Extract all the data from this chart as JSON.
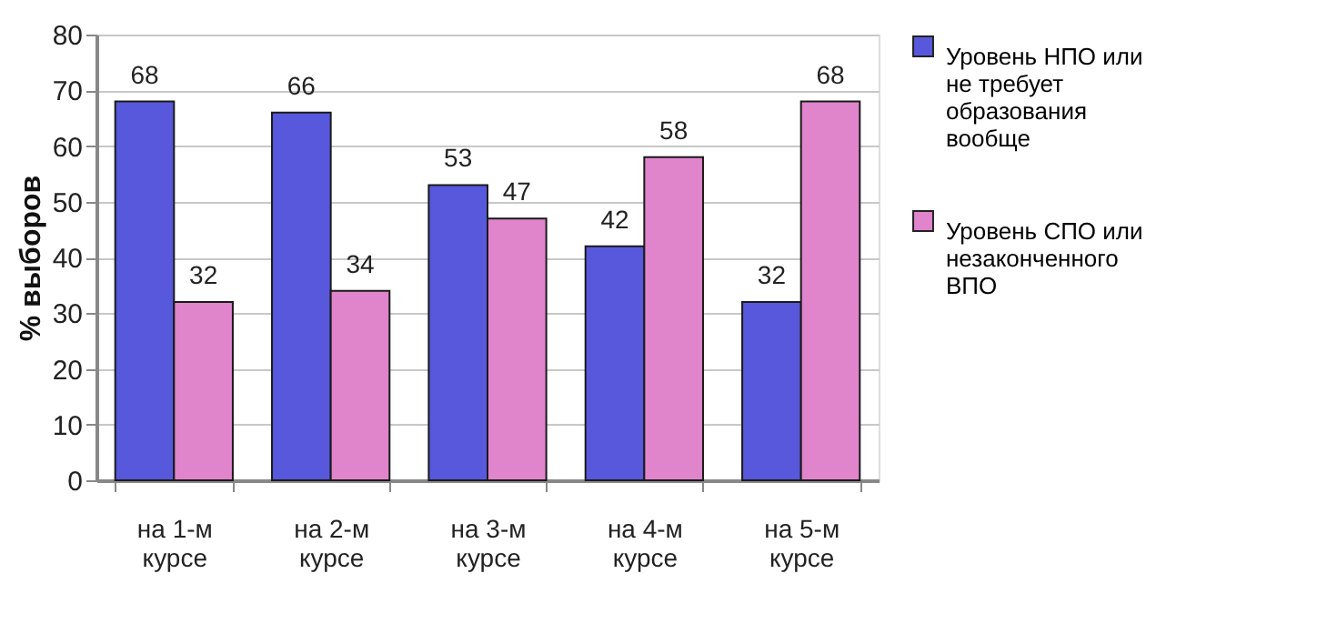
{
  "chart_data": {
    "type": "bar",
    "ylabel": "% выборов",
    "categories": [
      "на 1-м курсе",
      "на 2-м курсе",
      "на 3-м курсе",
      "на 4-м курсе",
      "на 5-м курсе"
    ],
    "series": [
      {
        "name": "Уровень НПО или не требует образования вообще",
        "color": "#5858dc",
        "values": [
          68,
          66,
          53,
          42,
          32
        ]
      },
      {
        "name": "Уровень СПО или незаконченного ВПО",
        "color": "#e084cc",
        "values": [
          32,
          34,
          47,
          58,
          68
        ]
      }
    ],
    "ylim": [
      0,
      80
    ],
    "yticks": [
      0,
      10,
      20,
      30,
      40,
      50,
      60,
      70,
      80
    ],
    "grid": "y",
    "legend": "right",
    "data_labels": true
  }
}
